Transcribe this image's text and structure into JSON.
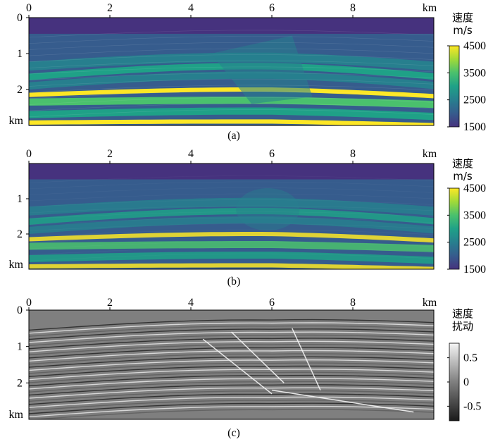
{
  "chart_data": [
    {
      "type": "heatmap",
      "panel_label": "(a)",
      "x_ticks": [
        "0",
        "2",
        "4",
        "6",
        "8"
      ],
      "x_unit": "km",
      "y_ticks": [
        "0",
        "1",
        "2"
      ],
      "y_unit": "km",
      "xlim": [
        0,
        10
      ],
      "ylim": [
        0,
        3
      ],
      "colorbar": {
        "title_lines": [
          "速度",
          "m/s"
        ],
        "ticks": [
          "4500",
          "3500",
          "2500",
          "1500"
        ],
        "range": [
          1500,
          4500
        ],
        "colormap": "viridis"
      },
      "colors": [
        "#46327e",
        "#365c8d",
        "#277f8e",
        "#1fa187",
        "#4ac16d",
        "#a0da39",
        "#fde725"
      ]
    },
    {
      "type": "heatmap",
      "panel_label": "(b)",
      "x_ticks": [
        "0",
        "2",
        "4",
        "6",
        "8"
      ],
      "x_unit": "km",
      "y_ticks": [
        "1",
        "2"
      ],
      "y_unit": "km",
      "xlim": [
        0,
        10
      ],
      "ylim": [
        0,
        3
      ],
      "colorbar": {
        "title_lines": [
          "速度",
          "m/s"
        ],
        "ticks": [
          "4500",
          "3500",
          "2500",
          "1500"
        ],
        "range": [
          1500,
          4500
        ],
        "colormap": "viridis"
      },
      "colors": [
        "#46327e",
        "#365c8d",
        "#277f8e",
        "#1fa187",
        "#4ac16d",
        "#a0da39",
        "#fde725"
      ]
    },
    {
      "type": "heatmap",
      "panel_label": "(c)",
      "x_ticks": [
        "0",
        "2",
        "4",
        "6",
        "8"
      ],
      "x_unit": "km",
      "y_ticks": [
        "0",
        "1",
        "2"
      ],
      "y_unit": "km",
      "xlim": [
        0,
        10
      ],
      "ylim": [
        0,
        3
      ],
      "colorbar": {
        "title_lines": [
          "速度",
          "扰动"
        ],
        "ticks": [
          "0.5",
          "0",
          "-0.5"
        ],
        "range": [
          -0.8,
          0.8
        ],
        "colormap": "gray"
      },
      "colors": [
        "#1a1a1a",
        "#7f7f7f",
        "#f5f5f5"
      ]
    }
  ]
}
